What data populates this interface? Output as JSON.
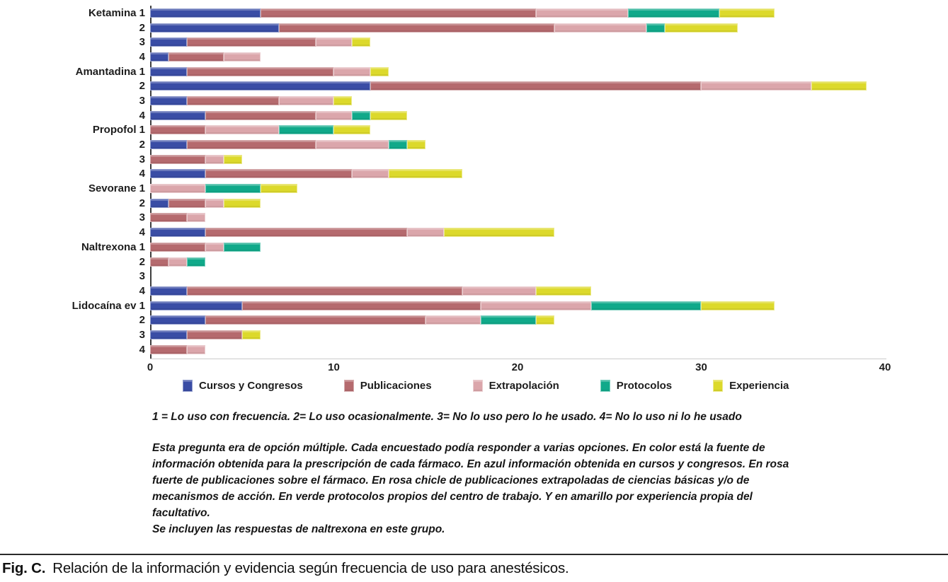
{
  "chart_data": {
    "type": "bar",
    "orientation": "horizontal",
    "stacked": true,
    "grid": false,
    "legend_position": "bottom",
    "xlabel": "",
    "ylabel": "",
    "xlim": [
      0,
      40
    ],
    "x_ticks": [
      0,
      10,
      20,
      30,
      40
    ],
    "categories": [
      "Ketamina 1",
      "2",
      "3",
      "4",
      "Amantadina 1",
      "2",
      "3",
      "4",
      "Propofol 1",
      "2",
      "3",
      "4",
      "Sevorane 1",
      "2",
      "3",
      "4",
      "Naltrexona 1",
      "2",
      "3",
      "4",
      "Lidocaína ev 1",
      "2",
      "3",
      "4"
    ],
    "series": [
      {
        "name": "Cursos y Congresos",
        "color": "#3a4da5",
        "values": [
          6,
          7,
          2,
          1,
          2,
          12,
          2,
          3,
          0,
          2,
          0,
          3,
          0,
          1,
          0,
          3,
          0,
          0,
          0,
          2,
          5,
          3,
          2,
          0
        ]
      },
      {
        "name": "Publicaciones",
        "color": "#b56a6e",
        "values": [
          15,
          15,
          7,
          3,
          8,
          18,
          5,
          6,
          3,
          7,
          3,
          8,
          0,
          2,
          2,
          11,
          3,
          1,
          0,
          15,
          13,
          12,
          3,
          2
        ]
      },
      {
        "name": "Extrapolación",
        "color": "#dba6ab",
        "values": [
          5,
          5,
          2,
          2,
          2,
          6,
          3,
          2,
          4,
          4,
          1,
          2,
          3,
          1,
          1,
          2,
          1,
          1,
          0,
          4,
          6,
          3,
          0,
          1
        ]
      },
      {
        "name": "Protocolos",
        "color": "#10a98a",
        "values": [
          5,
          1,
          0,
          0,
          0,
          0,
          0,
          1,
          3,
          1,
          0,
          0,
          3,
          0,
          0,
          0,
          2,
          1,
          0,
          0,
          6,
          3,
          0,
          0
        ]
      },
      {
        "name": "Experiencia",
        "color": "#dcd92b",
        "values": [
          3,
          4,
          1,
          0,
          1,
          3,
          1,
          2,
          2,
          1,
          1,
          4,
          2,
          2,
          0,
          6,
          0,
          0,
          0,
          3,
          4,
          1,
          1,
          0
        ]
      }
    ]
  },
  "notes": {
    "legend_note": "1 = Lo uso con frecuencia. 2= Lo uso ocasionalmente. 3= No lo uso pero lo he usado. 4= No lo uso ni lo he usado",
    "description_lines": [
      "Esta pregunta era de opción múltiple. Cada encuestado podía responder a varias opciones. En color está la fuente de",
      "información obtenida para la prescripción de cada fármaco. En azul información obtenida en cursos y congresos. En rosa",
      "fuerte de publicaciones sobre el fármaco. En rosa chicle de publicaciones extrapoladas de ciencias básicas y/o de",
      "mecanismos de acción. En verde protocolos propios del centro de trabajo. Y en amarillo por experiencia propia del",
      "facultativo."
    ],
    "inclusion_note": "Se incluyen las respuestas de naltrexona en este grupo."
  },
  "caption": {
    "label": "Fig. C.",
    "text": "Relación de la información y evidencia según frecuencia de uso para anestésicos."
  }
}
